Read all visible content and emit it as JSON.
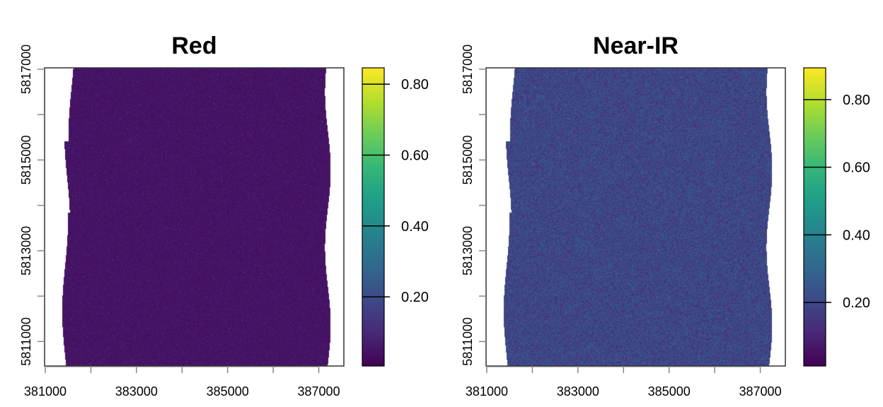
{
  "chart_data": [
    {
      "type": "heatmap",
      "title": "Red",
      "xlabel": "",
      "ylabel": "",
      "xlim": [
        380985,
        387550
      ],
      "ylim": [
        5810460,
        5817030
      ],
      "x_ticks": [
        381000,
        382000,
        383000,
        384000,
        385000,
        386000,
        387000
      ],
      "x_tick_labels": [
        "381000",
        "383000",
        "385000",
        "387000"
      ],
      "x_tick_label_values": [
        381000,
        383000,
        385000,
        387000
      ],
      "y_ticks": [
        5811000,
        5812000,
        5813000,
        5814000,
        5815000,
        5816000,
        5817000
      ],
      "y_tick_labels": [
        "5811000",
        "5813000",
        "5815000",
        "5817000"
      ],
      "y_tick_label_values": [
        5811000,
        5813000,
        5815000,
        5817000
      ],
      "raster_extent_x": [
        381480,
        387200
      ],
      "colorbar": {
        "colormap": "viridis",
        "range": [
          0.005,
          0.846
        ],
        "ticks": [
          0.2,
          0.4,
          0.6,
          0.8
        ],
        "tick_labels": [
          "0.20",
          "0.40",
          "0.60",
          "0.80"
        ]
      },
      "typical_value": 0.05,
      "grid": false
    },
    {
      "type": "heatmap",
      "title": "Near-IR",
      "xlabel": "",
      "ylabel": "",
      "xlim": [
        380985,
        387550
      ],
      "ylim": [
        5810460,
        5817030
      ],
      "x_ticks": [
        381000,
        382000,
        383000,
        384000,
        385000,
        386000,
        387000
      ],
      "x_tick_labels": [
        "381000",
        "383000",
        "385000",
        "387000"
      ],
      "x_tick_label_values": [
        381000,
        383000,
        385000,
        387000
      ],
      "y_ticks": [
        5811000,
        5812000,
        5813000,
        5814000,
        5815000,
        5816000,
        5817000
      ],
      "y_tick_labels": [
        "5811000",
        "5813000",
        "5815000",
        "5817000"
      ],
      "y_tick_label_values": [
        5811000,
        5813000,
        5815000,
        5817000
      ],
      "raster_extent_x": [
        381480,
        387200
      ],
      "colorbar": {
        "colormap": "viridis",
        "range": [
          0.012,
          0.894
        ],
        "ticks": [
          0.2,
          0.4,
          0.6,
          0.8
        ],
        "tick_labels": [
          "0.20",
          "0.40",
          "0.60",
          "0.80"
        ]
      },
      "typical_value": 0.2,
      "grid": false
    }
  ]
}
